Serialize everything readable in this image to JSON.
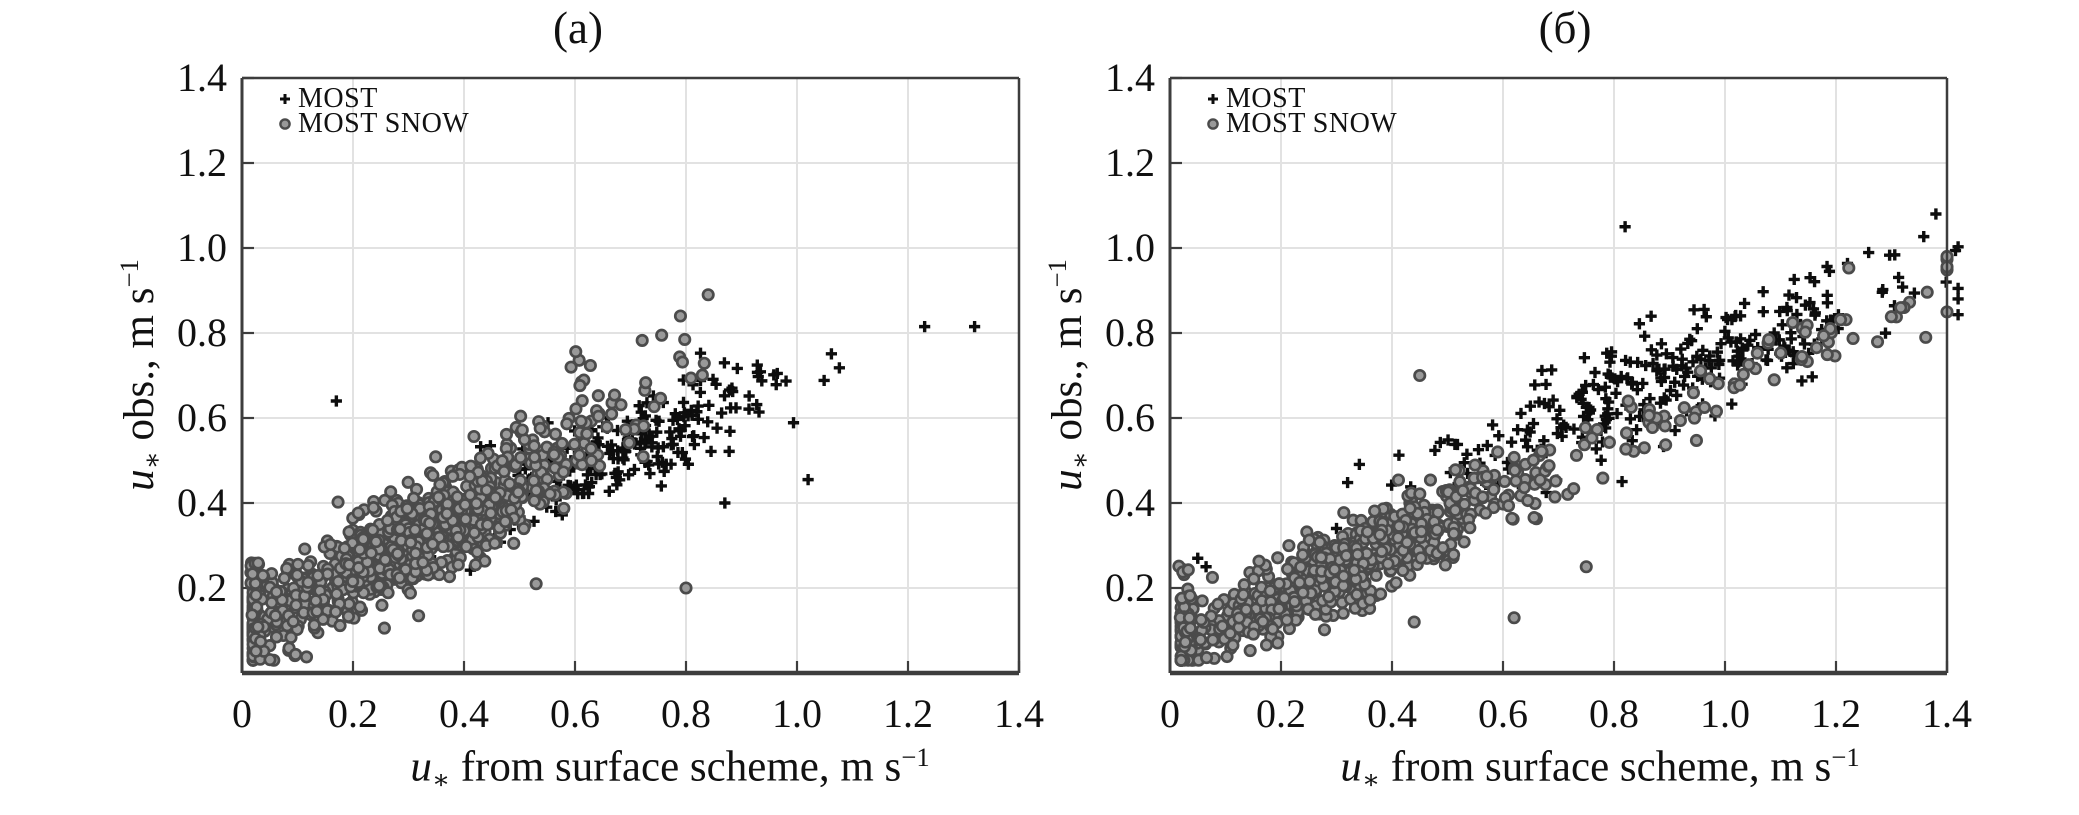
{
  "style": {
    "background": "#ffffff",
    "grid_color": "#e2e2e2",
    "frame_color": "#3d3d3d",
    "plus_color": "#0d0d0d",
    "circle_edge_color": "#4b4b4b",
    "circle_face_color": "#999999",
    "text_color": "#111111"
  },
  "chart_data": [
    {
      "id": "a",
      "type": "scatter",
      "title": "(a)",
      "xlabel": "u∗ from surface scheme, m s⁻¹",
      "ylabel": "u∗ obs., m s⁻¹",
      "xlabel_parts": [
        [
          "it",
          "u"
        ],
        [
          "sub",
          "∗"
        ],
        [
          "n",
          " from surface scheme, m s"
        ],
        [
          "sup",
          "−1"
        ]
      ],
      "ylabel_parts": [
        [
          "it",
          "u"
        ],
        [
          "sub",
          "∗"
        ],
        [
          "n",
          " obs., m s"
        ],
        [
          "sup",
          "−1"
        ]
      ],
      "xlim": [
        0,
        1.4
      ],
      "ylim": [
        0,
        1.4
      ],
      "xtick_values": [
        0,
        0.2,
        0.4,
        0.6,
        0.8,
        1.0,
        1.2,
        1.4
      ],
      "xtick_labels": [
        "0",
        "0.2",
        "0.4",
        "0.6",
        "0.8",
        "1.0",
        "1.2",
        "1.4"
      ],
      "ytick_values": [
        0.2,
        0.4,
        0.6,
        0.8,
        1.0,
        1.2,
        1.4
      ],
      "ytick_labels": [
        "0.2",
        "0.4",
        "0.6",
        "0.8",
        "1.0",
        "1.2",
        "1.4"
      ],
      "grid": true,
      "legend_position": "top-left",
      "series": [
        {
          "name": "MOST",
          "marker": "plus",
          "seed": 11,
          "clusters": [
            {
              "kind": "band",
              "n": 265,
              "x_mu": 0.68,
              "x_sigma": 0.16,
              "x_min": 0.34,
              "x_max": 1.13,
              "intercept": 0.17,
              "slope": 0.52,
              "noise": 0.052
            }
          ],
          "points": [
            [
              0.17,
              0.64
            ],
            [
              1.23,
              0.815
            ],
            [
              1.32,
              0.815
            ],
            [
              1.02,
              0.455
            ],
            [
              0.87,
              0.4
            ]
          ]
        },
        {
          "name": "MOST SNOW",
          "marker": "circle",
          "seed": 22,
          "clusters": [
            {
              "kind": "band",
              "n": 940,
              "x_mu": 0.3,
              "x_sigma": 0.16,
              "x_min": 0.02,
              "x_max": 0.88,
              "intercept": 0.1,
              "slope": 0.7,
              "noise": 0.057
            },
            {
              "kind": "uniform",
              "n": 25,
              "x_min": 0.015,
              "x_max": 0.04,
              "y_min": 0.04,
              "y_max": 0.26
            },
            {
              "kind": "uniform",
              "n": 16,
              "x_min": 0.58,
              "x_max": 0.85,
              "y_min": 0.66,
              "y_max": 0.8
            }
          ],
          "points": [
            [
              0.84,
              0.89
            ],
            [
              0.79,
              0.84
            ],
            [
              0.8,
              0.2
            ],
            [
              0.53,
              0.21
            ]
          ]
        }
      ]
    },
    {
      "id": "b",
      "type": "scatter",
      "title": "(б)",
      "xlabel": "u∗ from surface scheme, m s⁻¹",
      "ylabel": "u∗ obs., m s⁻¹",
      "xlabel_parts": [
        [
          "it",
          "u"
        ],
        [
          "sub",
          "∗"
        ],
        [
          "n",
          " from surface scheme, m s"
        ],
        [
          "sup",
          "−1"
        ]
      ],
      "ylabel_parts": [
        [
          "it",
          "u"
        ],
        [
          "sub",
          "∗"
        ],
        [
          "n",
          " obs., m s"
        ],
        [
          "sup",
          "−1"
        ]
      ],
      "xlim": [
        0,
        1.4
      ],
      "ylim": [
        0,
        1.4
      ],
      "xtick_values": [
        0,
        0.2,
        0.4,
        0.6,
        0.8,
        1.0,
        1.2,
        1.4
      ],
      "xtick_labels": [
        "0",
        "0.2",
        "0.4",
        "0.6",
        "0.8",
        "1.0",
        "1.2",
        "1.4"
      ],
      "ytick_values": [
        0.2,
        0.4,
        0.6,
        0.8,
        1.0,
        1.2,
        1.4
      ],
      "ytick_labels": [
        "0.2",
        "0.4",
        "0.6",
        "0.8",
        "1.0",
        "1.2",
        "1.4"
      ],
      "grid": true,
      "legend_position": "top-left",
      "series": [
        {
          "name": "MOST",
          "marker": "plus",
          "seed": 33,
          "clusters": [
            {
              "kind": "band",
              "n": 308,
              "x_mu": 0.88,
              "x_sigma": 0.22,
              "x_min": 0.32,
              "x_max": 1.42,
              "intercept": 0.2,
              "slope": 0.55,
              "noise": 0.062
            }
          ],
          "points": [
            [
              0.82,
              1.05
            ],
            [
              1.38,
              1.08
            ],
            [
              0.05,
              0.27
            ],
            [
              0.065,
              0.25
            ],
            [
              0.3,
              0.34
            ]
          ]
        },
        {
          "name": "MOST SNOW",
          "marker": "circle",
          "seed": 44,
          "clusters": [
            {
              "kind": "band",
              "n": 690,
              "x_mu": 0.32,
              "x_sigma": 0.17,
              "x_min": 0.02,
              "x_max": 0.95,
              "intercept": 0.05,
              "slope": 0.63,
              "noise": 0.05
            },
            {
              "kind": "band",
              "n": 80,
              "x_mu": 1.0,
              "x_sigma": 0.25,
              "x_min": 0.62,
              "x_max": 1.4,
              "intercept": 0.05,
              "slope": 0.63,
              "noise": 0.045
            },
            {
              "kind": "uniform",
              "n": 30,
              "x_min": 0.015,
              "x_max": 0.04,
              "y_min": 0.05,
              "y_max": 0.28
            }
          ],
          "points": [
            [
              0.45,
              0.7
            ],
            [
              0.75,
              0.25
            ],
            [
              0.44,
              0.12
            ],
            [
              0.62,
              0.13
            ]
          ]
        }
      ]
    }
  ]
}
